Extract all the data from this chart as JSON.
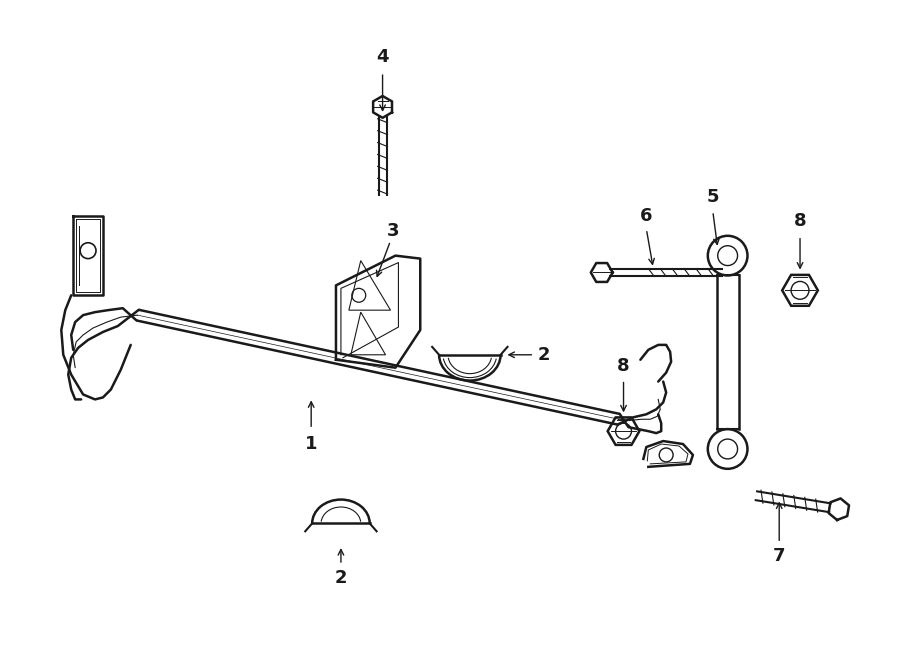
{
  "bg_color": "#ffffff",
  "line_color": "#1a1a1a",
  "figsize": [
    9.0,
    6.61
  ],
  "dpi": 100,
  "lw_thick": 1.8,
  "lw_thin": 1.0,
  "lw_detail": 0.7
}
